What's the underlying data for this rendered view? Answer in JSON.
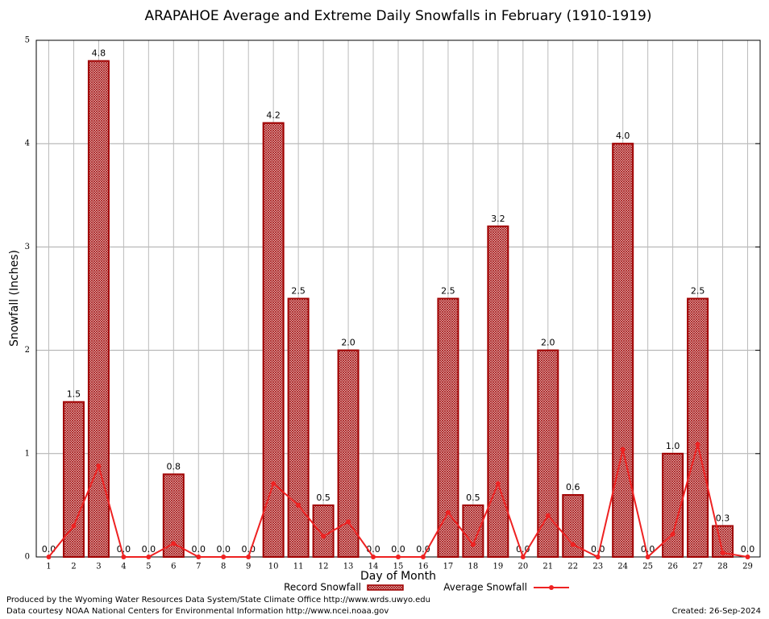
{
  "chart_data": {
    "type": "bar",
    "title": "ARAPAHOE Average and Extreme Daily Snowfalls in February (1910-1919)",
    "x_label": "Day of Month",
    "y_label": "Snowfall (Inches)",
    "categories": [
      "1",
      "2",
      "3",
      "4",
      "5",
      "6",
      "7",
      "8",
      "9",
      "10",
      "11",
      "12",
      "13",
      "14",
      "15",
      "16",
      "17",
      "18",
      "19",
      "20",
      "21",
      "22",
      "23",
      "24",
      "25",
      "26",
      "27",
      "28",
      "29"
    ],
    "series": [
      {
        "name": "Record Snowfall",
        "type": "bar",
        "color": "#a00000",
        "values": [
          0,
          1.5,
          4.8,
          0,
          0,
          0.8,
          0,
          0,
          0,
          4.2,
          2.5,
          0.5,
          2.0,
          0,
          0,
          0,
          2.5,
          0.5,
          3.2,
          0,
          2.0,
          0.6,
          0,
          4.0,
          0,
          1.0,
          2.5,
          0.3,
          0
        ],
        "value_labels": [
          "0.0",
          "1.5",
          "4.8",
          "0.0",
          "0.0",
          "0.8",
          "0.0",
          "0.0",
          "0.0",
          "4.2",
          "2.5",
          "0.5",
          "2.0",
          "0.0",
          "0.0",
          "0.0",
          "2.5",
          "0.5",
          "3.2",
          "0.0",
          "2.0",
          "0.6",
          "0.0",
          "4.0",
          "0.0",
          "1.0",
          "2.5",
          "0.3",
          "0.0"
        ]
      },
      {
        "name": "Average Snowfall",
        "type": "line",
        "color": "#ee2222",
        "values": [
          0,
          0.3,
          0.88,
          0,
          0,
          0.13,
          0,
          0,
          0,
          0.71,
          0.5,
          0.2,
          0.34,
          0,
          0,
          0,
          0.43,
          0.12,
          0.71,
          0,
          0.4,
          0.12,
          0,
          1.04,
          0,
          0.22,
          1.09,
          0.04,
          0
        ]
      }
    ],
    "ylim": [
      0,
      5
    ],
    "yticks": [
      0,
      1,
      2,
      3,
      4,
      5
    ],
    "grid": true,
    "footer": [
      "Produced by the Wyoming Water Resources Data System/State Climate Office http://www.wrds.uwyo.edu",
      "Data courtesy NOAA National Centers for Environmental Information http://www.ncei.noaa.gov"
    ],
    "created": "Created:  26-Sep-2024"
  }
}
